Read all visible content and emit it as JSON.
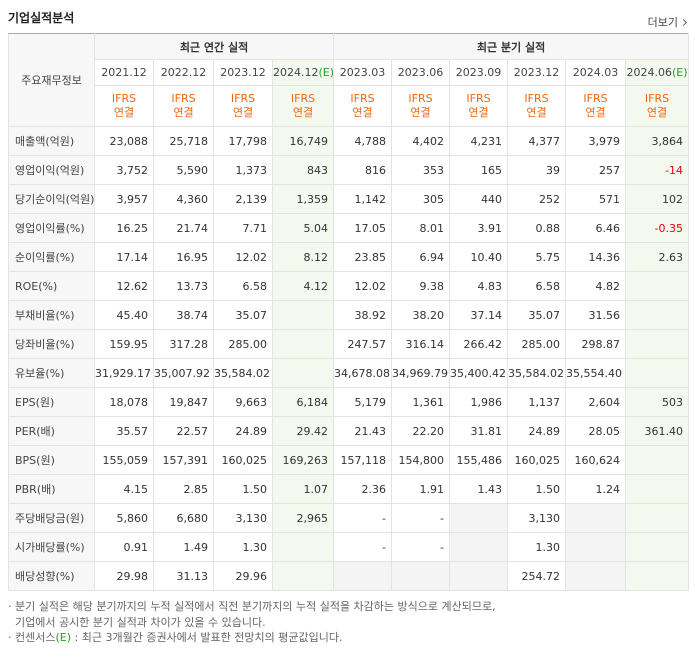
{
  "header": {
    "title": "기업실적분석",
    "more": "더보기"
  },
  "table": {
    "corner": "주요재무정보",
    "groups": [
      {
        "label": "최근 연간 실적",
        "columns": [
          {
            "date": "2021.12",
            "standard": "IFRS",
            "basis": "연결"
          },
          {
            "date": "2022.12",
            "standard": "IFRS",
            "basis": "연결"
          },
          {
            "date": "2023.12",
            "standard": "IFRS",
            "basis": "연결"
          },
          {
            "date": "2024.12",
            "estimate": "(E)",
            "standard": "IFRS",
            "basis": "연결"
          }
        ]
      },
      {
        "label": "최근 분기 실적",
        "columns": [
          {
            "date": "2023.03",
            "standard": "IFRS",
            "basis": "연결"
          },
          {
            "date": "2023.06",
            "standard": "IFRS",
            "basis": "연결"
          },
          {
            "date": "2023.09",
            "standard": "IFRS",
            "basis": "연결"
          },
          {
            "date": "2023.12",
            "standard": "IFRS",
            "basis": "연결"
          },
          {
            "date": "2024.03",
            "standard": "IFRS",
            "basis": "연결"
          },
          {
            "date": "2024.06",
            "estimate": "(E)",
            "standard": "IFRS",
            "basis": "연결"
          }
        ]
      }
    ],
    "rows": [
      {
        "label": "매출액(억원)",
        "values": [
          "23,088",
          "25,718",
          "17,798",
          "16,749",
          "4,788",
          "4,402",
          "4,231",
          "4,377",
          "3,979",
          "3,864"
        ]
      },
      {
        "label": "영업이익(억원)",
        "values": [
          "3,752",
          "5,590",
          "1,373",
          "843",
          "816",
          "353",
          "165",
          "39",
          "257",
          "-14"
        ]
      },
      {
        "label": "당기순이익(억원)",
        "values": [
          "3,957",
          "4,360",
          "2,139",
          "1,359",
          "1,142",
          "305",
          "440",
          "252",
          "571",
          "102"
        ]
      },
      {
        "label": "영업이익률(%)",
        "values": [
          "16.25",
          "21.74",
          "7.71",
          "5.04",
          "17.05",
          "8.01",
          "3.91",
          "0.88",
          "6.46",
          "-0.35"
        ]
      },
      {
        "label": "순이익률(%)",
        "values": [
          "17.14",
          "16.95",
          "12.02",
          "8.12",
          "23.85",
          "6.94",
          "10.40",
          "5.75",
          "14.36",
          "2.63"
        ]
      },
      {
        "label": "ROE(%)",
        "values": [
          "12.62",
          "13.73",
          "6.58",
          "4.12",
          "12.02",
          "9.38",
          "4.83",
          "6.58",
          "4.82",
          null
        ]
      },
      {
        "label": "부채비율(%)",
        "values": [
          "45.40",
          "38.74",
          "35.07",
          null,
          "38.92",
          "38.20",
          "37.14",
          "35.07",
          "31.56",
          null
        ]
      },
      {
        "label": "당좌비율(%)",
        "values": [
          "159.95",
          "317.28",
          "285.00",
          null,
          "247.57",
          "316.14",
          "266.42",
          "285.00",
          "298.87",
          null
        ]
      },
      {
        "label": "유보율(%)",
        "values": [
          "31,929.17",
          "35,007.92",
          "35,584.02",
          null,
          "34,678.08",
          "34,969.79",
          "35,400.42",
          "35,584.02",
          "35,554.40",
          null
        ]
      },
      {
        "label": "EPS(원)",
        "values": [
          "18,078",
          "19,847",
          "9,663",
          "6,184",
          "5,179",
          "1,361",
          "1,986",
          "1,137",
          "2,604",
          "503"
        ]
      },
      {
        "label": "PER(배)",
        "values": [
          "35.57",
          "22.57",
          "24.89",
          "29.42",
          "21.43",
          "22.20",
          "31.81",
          "24.89",
          "28.05",
          "361.40"
        ]
      },
      {
        "label": "BPS(원)",
        "values": [
          "155,059",
          "157,391",
          "160,025",
          "169,263",
          "157,118",
          "154,800",
          "155,486",
          "160,025",
          "160,624",
          null
        ]
      },
      {
        "label": "PBR(배)",
        "values": [
          "4.15",
          "2.85",
          "1.50",
          "1.07",
          "2.36",
          "1.91",
          "1.43",
          "1.50",
          "1.24",
          null
        ]
      },
      {
        "label": "주당배당금(원)",
        "values": [
          "5,860",
          "6,680",
          "3,130",
          "2,965",
          "-",
          "-",
          null,
          "3,130",
          null,
          null
        ]
      },
      {
        "label": "시가배당률(%)",
        "values": [
          "0.91",
          "1.49",
          "1.30",
          null,
          "-",
          "-",
          null,
          "1.30",
          null,
          null
        ]
      },
      {
        "label": "배당성향(%)",
        "values": [
          "29.98",
          "31.13",
          "29.96",
          null,
          null,
          null,
          null,
          "254.72",
          null,
          null
        ]
      }
    ]
  },
  "notes": [
    {
      "parts": [
        "· 분기 실적은 해당 분기까지의 누적 실적에서 직전 분기까지의 누적 실적을 차감하는 방식으로 계산되므로,"
      ]
    },
    {
      "parts": [
        "기업에서 공시한 분기 실적과 차이가 있을 수 있습니다."
      ]
    },
    {
      "parts": [
        "· 컨센서스",
        "(E)",
        " : 최근 3개월간 증권사에서 발표한 전망치의 평균값입니다."
      ]
    }
  ]
}
